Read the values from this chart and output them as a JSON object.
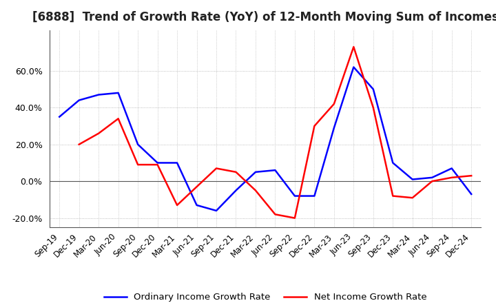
{
  "title": "[6888]  Trend of Growth Rate (YoY) of 12-Month Moving Sum of Incomes",
  "title_fontsize": 12,
  "ylim": [
    -0.25,
    0.82
  ],
  "yticks": [
    -0.2,
    0.0,
    0.2,
    0.4,
    0.6
  ],
  "background_color": "#ffffff",
  "grid_color": "#aaaaaa",
  "ordinary_color": "#0000ff",
  "net_color": "#ff0000",
  "legend_ordinary": "Ordinary Income Growth Rate",
  "legend_net": "Net Income Growth Rate",
  "x_labels": [
    "Sep-19",
    "Dec-19",
    "Mar-20",
    "Jun-20",
    "Sep-20",
    "Dec-20",
    "Mar-21",
    "Jun-21",
    "Sep-21",
    "Dec-21",
    "Mar-22",
    "Jun-22",
    "Sep-22",
    "Dec-22",
    "Mar-23",
    "Jun-23",
    "Sep-23",
    "Dec-23",
    "Mar-24",
    "Jun-24",
    "Sep-24",
    "Dec-24"
  ],
  "ordinary": [
    0.35,
    0.44,
    0.47,
    0.48,
    0.2,
    0.1,
    0.1,
    -0.13,
    -0.16,
    -0.05,
    0.05,
    0.06,
    -0.08,
    -0.08,
    0.29,
    0.62,
    0.5,
    0.1,
    0.01,
    0.02,
    0.07,
    -0.07
  ],
  "net": [
    null,
    0.2,
    0.26,
    0.34,
    0.09,
    0.09,
    -0.13,
    -0.03,
    0.07,
    0.05,
    -0.05,
    -0.18,
    -0.2,
    0.3,
    0.42,
    0.73,
    0.4,
    -0.08,
    -0.09,
    0.0,
    0.02,
    0.03
  ]
}
